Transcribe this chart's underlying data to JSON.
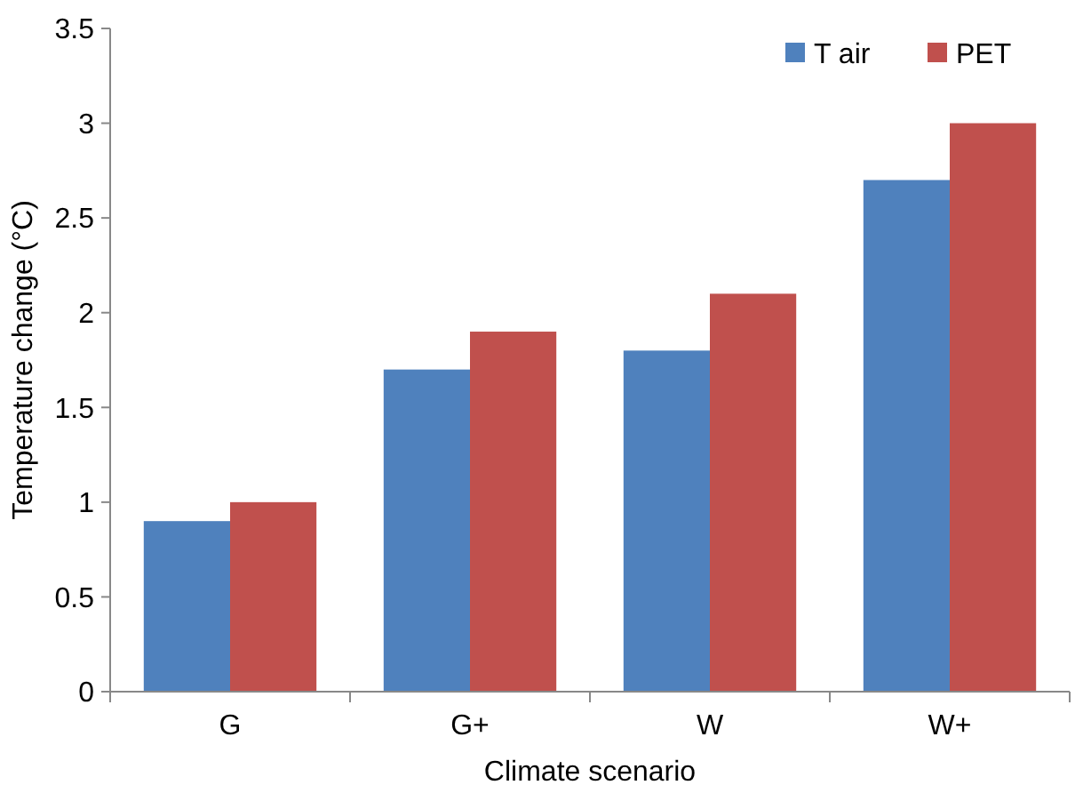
{
  "chart_data": {
    "type": "bar",
    "xlabel": "Climate scenario",
    "ylabel": "Temperature change (°C)",
    "categories": [
      "G",
      "G+",
      "W",
      "W+"
    ],
    "series": [
      {
        "name": "T air",
        "color": "#4f81bd",
        "values": [
          0.9,
          1.7,
          1.8,
          2.7
        ]
      },
      {
        "name": "PET",
        "color": "#c0504d",
        "values": [
          1.0,
          1.9,
          2.1,
          3.0
        ]
      }
    ],
    "ylim": [
      0,
      3.5
    ],
    "yticks": [
      0,
      0.5,
      1,
      1.5,
      2,
      2.5,
      3,
      3.5
    ],
    "grid": false,
    "legend": "top right"
  }
}
